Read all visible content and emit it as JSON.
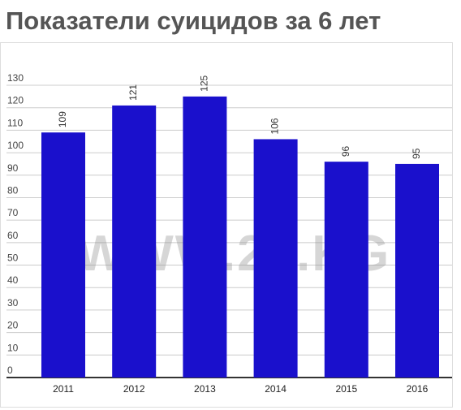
{
  "title": "Показатели суицидов за 6 лет",
  "watermark": "WWW.24.KG",
  "colors": {
    "bar": "#1a10cc",
    "grid": "#cccccc",
    "axis": "#333333",
    "title": "#555555"
  },
  "chart_data": {
    "type": "bar",
    "title": "Показатели суицидов за 6 лет",
    "categories": [
      "2011",
      "2012",
      "2013",
      "2014",
      "2015",
      "2016"
    ],
    "values": [
      109,
      121,
      125,
      106,
      96,
      95
    ],
    "yticks": [
      0,
      10,
      20,
      30,
      40,
      50,
      60,
      70,
      80,
      90,
      100,
      110,
      120,
      130
    ],
    "ylim": [
      0,
      130
    ],
    "grid": true,
    "legend": "none",
    "xlabel": "",
    "ylabel": ""
  }
}
